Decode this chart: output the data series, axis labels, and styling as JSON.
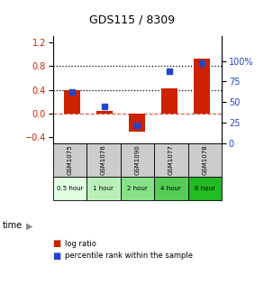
{
  "title": "GDS115 / 8309",
  "categories": [
    "GSM1075",
    "GSM1076",
    "GSM1090",
    "GSM1077",
    "GSM1078"
  ],
  "time_labels": [
    "0.5 hour",
    "1 hour",
    "2 hour",
    "4 hour",
    "6 hour"
  ],
  "log_ratios": [
    0.4,
    0.05,
    -0.3,
    0.42,
    0.93
  ],
  "percentile_ranks": [
    62,
    45,
    22,
    88,
    97
  ],
  "bar_color": "#cc2200",
  "dot_color": "#2244cc",
  "ylim_left": [
    -0.5,
    1.3
  ],
  "ylim_right": [
    0,
    130
  ],
  "left_ticks": [
    -0.4,
    0,
    0.4,
    0.8,
    1.2
  ],
  "right_ticks": [
    0,
    25,
    50,
    75,
    100
  ],
  "hline_y": [
    0.4,
    0.8
  ],
  "zero_line_y": 0,
  "bg_color": "#ffffff",
  "gsm_bg_color": "#cccccc",
  "time_colors": [
    "#e0ffe0",
    "#b8f0b8",
    "#88e088",
    "#55cc55",
    "#22bb22"
  ],
  "bar_width": 0.5
}
